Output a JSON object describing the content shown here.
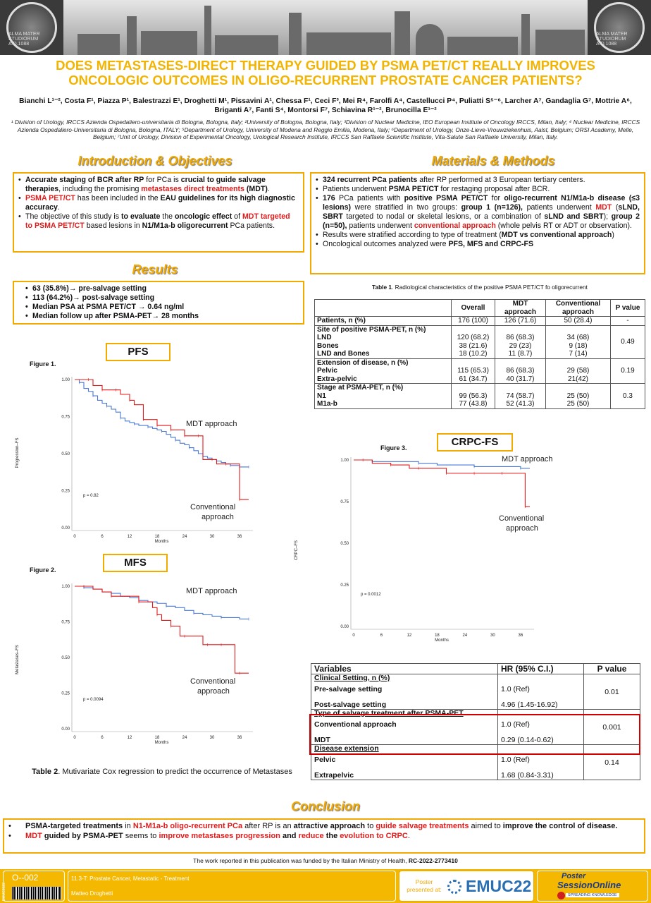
{
  "header": {
    "seal_text": "ALMA MATER STUDIORUM A.D.1088"
  },
  "title": "DOES METASTASES-DIRECT THERAPY GUIDED BY PSMA PET/CT REALLY IMPROVES ONCOLOGIC OUTCOMES IN OLIGO-RECURRENT PROSTATE CANCER PATIENTS?",
  "authors": "Bianchi L¹⁻², Costa F¹, Piazza P¹, Balestrazzi E¹, Droghetti M¹, Pissavini A¹, Chessa F¹, Ceci F³, Mei R⁴, Farolfi A⁴, Castellucci P⁴, Puliatti S⁵⁻⁶, Larcher A⁷, Gandaglia G⁷, Mottrie A⁶, Briganti A⁷, Fanti S⁴, Montorsi F⁷, Schiavina R¹⁻², Brunocilla E¹⁻²",
  "affiliations": "¹ Division of Urology, IRCCS Azienda Ospedaliero-universitaria di Bologna, Bologna, Italy; ²University of Bologna, Bologna, Italy; ³Division of Nuclear Medicine, IEO European Institute of Oncology IRCCS, Milan, Italy; ⁴ Nuclear Medicine, IRCCS Azienda Ospedaliero-Universitaria di Bologna, Bologna, ITALY; ⁵Department of Urology, University of Modena and Reggio Emilia, Modena, Italy; ⁶Department of Urology, Onze-Lieve-Vrouwziekenhuis, Aalst, Belgium; ORSI Academy, Melle, Belgium; ⁷Unit of Urology, Division of Experimental Oncology, Urological Research Institute, IRCCS San Raffaele Scientific Institute, Vita-Salute San Raffaele University, Milan, Italy.",
  "intro": {
    "heading": "Introduction & Objectives",
    "b1": {
      "a": "Accurate staging of BCR after RP",
      "b": " for PCa is ",
      "c": "crucial to guide salvage therapies",
      "d": ", including the promising ",
      "e": "metastases direct treatments",
      "f": " (MDT)",
      "g": "."
    },
    "b2": {
      "a": "PSMA PET/CT",
      "b": " has been included in the ",
      "c": "EAU guidelines for its high diagnostic accuracy",
      "d": "."
    },
    "b3": {
      "a": "The objective of this study is ",
      "b": "to evaluate",
      "c": " the ",
      "d": "oncologic effect",
      "e": " of ",
      "f": "MDT targeted to PSMA PET/CT",
      "g": " based lesions in ",
      "h": "N1/M1a-b oligorecurrent",
      "i": " PCa patients."
    }
  },
  "methods": {
    "heading": "Materials & Methods",
    "b1": {
      "a": "324 recurrent PCa patients",
      "b": " after RP performed at 3 European tertiary centers."
    },
    "b2": {
      "a": "Patients underwent ",
      "b": "PSMA PET/CT",
      "c": " for restaging proposal after BCR."
    },
    "b3": {
      "a": "176",
      "b": " PCa patients with ",
      "c": "positive PSMA PET/CT",
      "d": " for ",
      "e": "oligo-recurrent N1/M1a-b disease (≤3 lesions)",
      "f": " were stratified in two groups: ",
      "g": "group 1 (n=126),",
      "h": " patients underwent ",
      "i": "MDT",
      "j": " (",
      "k": "sLND, SBRT",
      "l": " targeted to nodal or skeletal lesions, or a combination of ",
      "m": "sLND and SBRT",
      "n": "); ",
      "o": "group 2 (n=50),",
      "p": " patients underwent ",
      "q": "conventional approach",
      "r": " (whole pelvis RT or ADT or observation)."
    },
    "b4": {
      "a": "Results were stratified according to type of treatment (",
      "b": "MDT vs conventional approach",
      "c": ")"
    },
    "b5": {
      "a": "Oncological outcomes analyzed were ",
      "b": "PFS, MFS and CRPC-FS"
    }
  },
  "results": {
    "heading": "Results",
    "items": [
      "63 (35.8%)→ pre-salvage setting",
      "113 (64.2%)→ post-salvage setting",
      "Median PSA at PSMA PET/CT → 0.64 ng/ml",
      "Median follow up after PSMA-PET→ 28 months"
    ]
  },
  "table1": {
    "caption_bold": "Table 1",
    "caption": ". Radiological characteristics of the positive PSMA PET/CT fo oligorecurrent",
    "headers": [
      "",
      "Overall",
      "MDT approach",
      "Conventional approach",
      "P value"
    ],
    "rows": [
      {
        "labels": [
          "Patients, n (%)"
        ],
        "overall": [
          "176 (100)"
        ],
        "mdt": [
          "126 (71.6)"
        ],
        "conv": [
          "50 (28.4)"
        ],
        "p": "-"
      },
      {
        "labels": [
          "Site of positive PSMA-PET, n (%)",
          "LND",
          "Bones",
          "LND and Bones"
        ],
        "overall": [
          "",
          "120 (68.2)",
          "38 (21.6)",
          "18 (10.2)"
        ],
        "mdt": [
          "",
          "86 (68.3)",
          "29 (23)",
          "11 (8.7)"
        ],
        "conv": [
          "",
          "34 (68)",
          "9 (18)",
          "7 (14)"
        ],
        "p": "0.49"
      },
      {
        "labels": [
          "Extension of disease, n (%)",
          "Pelvic",
          "Extra-pelvic"
        ],
        "overall": [
          "",
          "115 (65.3)",
          "61 (34.7)"
        ],
        "mdt": [
          "",
          "86 (68.3)",
          "40 (31.7)"
        ],
        "conv": [
          "",
          "29 (58)",
          "21(42)"
        ],
        "p": "0.19"
      },
      {
        "labels": [
          "Stage at PSMA-PET, n (%)",
          "N1",
          "M1a-b"
        ],
        "overall": [
          "",
          "99 (56.3)",
          "77 (43.8)"
        ],
        "mdt": [
          "",
          "74 (58.7)",
          "52 (41.3)"
        ],
        "conv": [
          "",
          "25 (50)",
          "25 (50)"
        ],
        "p": "0.3"
      }
    ]
  },
  "chart_data": [
    {
      "type": "line",
      "panel_label": "PFS",
      "figure_label": "Figure 1.",
      "ylabel": "Progression–FS",
      "xlabel": "Months",
      "x_ticks": [
        0,
        6,
        12,
        18,
        24,
        30,
        36
      ],
      "y_ticks": [
        "0.00",
        "0.25",
        "0.50",
        "0.75",
        "1.00"
      ],
      "xlim": [
        0,
        38
      ],
      "ylim": [
        0,
        1
      ],
      "annotation": "p = 0.82",
      "label_mdt": "MDT approach",
      "label_conv": "Conventional approach",
      "series": [
        {
          "color": "#4a78d4",
          "x": [
            0,
            1,
            2,
            3,
            4,
            5,
            6,
            7,
            8,
            9,
            10,
            11,
            12,
            13,
            14,
            15,
            16,
            17,
            18,
            19,
            20,
            21,
            22,
            23,
            24,
            25,
            26,
            27,
            28,
            29,
            30,
            31,
            32,
            33,
            34,
            35,
            36,
            38
          ],
          "y": [
            1.0,
            0.98,
            0.94,
            0.92,
            0.89,
            0.86,
            0.84,
            0.82,
            0.8,
            0.78,
            0.74,
            0.72,
            0.71,
            0.7,
            0.69,
            0.69,
            0.68,
            0.67,
            0.66,
            0.65,
            0.63,
            0.61,
            0.59,
            0.57,
            0.56,
            0.54,
            0.52,
            0.5,
            0.48,
            0.47,
            0.46,
            0.45,
            0.44,
            0.43,
            0.42,
            0.42,
            0.41,
            0.41
          ]
        },
        {
          "color": "#e01b1b",
          "x": [
            0,
            3,
            4,
            5,
            6,
            7,
            8,
            9,
            10,
            11,
            12,
            13,
            14,
            15,
            16,
            17,
            18,
            19,
            20,
            21,
            22,
            23,
            24,
            25,
            26,
            27,
            28,
            29,
            30,
            31,
            32,
            33,
            34,
            35,
            36,
            38
          ],
          "y": [
            1.0,
            1.0,
            0.96,
            0.96,
            0.93,
            0.93,
            0.93,
            0.93,
            0.9,
            0.9,
            0.86,
            0.83,
            0.83,
            0.73,
            0.73,
            0.73,
            0.69,
            0.69,
            0.69,
            0.66,
            0.66,
            0.66,
            0.62,
            0.62,
            0.62,
            0.62,
            0.46,
            0.46,
            0.46,
            0.43,
            0.43,
            0.43,
            0.43,
            0.43,
            0.19,
            0.19
          ]
        }
      ]
    },
    {
      "type": "line",
      "panel_label": "MFS",
      "figure_label": "Figure 2.",
      "ylabel": "Metastases–FS",
      "xlabel": "Months",
      "x_ticks": [
        0,
        6,
        12,
        18,
        24,
        30,
        36
      ],
      "y_ticks": [
        "0.00",
        "0.25",
        "0.50",
        "0.75",
        "1.00"
      ],
      "xlim": [
        0,
        38
      ],
      "ylim": [
        0,
        1
      ],
      "annotation": "p = 0.0094",
      "label_mdt": "MDT approach",
      "label_conv": "Conventional approach",
      "series": [
        {
          "color": "#4a78d4",
          "x": [
            0,
            2,
            4,
            6,
            8,
            10,
            12,
            14,
            16,
            18,
            20,
            22,
            24,
            26,
            28,
            30,
            32,
            34,
            36,
            38
          ],
          "y": [
            1.0,
            0.99,
            0.98,
            0.96,
            0.95,
            0.93,
            0.92,
            0.9,
            0.89,
            0.88,
            0.86,
            0.85,
            0.83,
            0.81,
            0.8,
            0.79,
            0.78,
            0.78,
            0.77,
            0.77
          ]
        },
        {
          "color": "#e01b1b",
          "x": [
            0,
            2,
            4,
            6,
            8,
            10,
            12,
            14,
            16,
            17,
            18,
            19,
            20,
            21,
            22,
            23,
            24,
            27,
            28,
            29,
            30,
            31,
            32,
            34,
            35,
            36,
            38
          ],
          "y": [
            1.0,
            1.0,
            0.98,
            0.96,
            0.93,
            0.93,
            0.93,
            0.89,
            0.89,
            0.85,
            0.8,
            0.76,
            0.76,
            0.72,
            0.72,
            0.65,
            0.65,
            0.65,
            0.59,
            0.59,
            0.59,
            0.59,
            0.59,
            0.59,
            0.39,
            0.39,
            0.39
          ]
        }
      ]
    },
    {
      "type": "line",
      "panel_label": "CRPC-FS",
      "figure_label": "Figure 3.",
      "ylabel": "CRPC–FS",
      "xlabel": "Months",
      "x_ticks": [
        0,
        6,
        12,
        18,
        24,
        30,
        36
      ],
      "y_ticks": [
        "0.00",
        "0.25",
        "0.50",
        "0.75",
        "1.00"
      ],
      "xlim": [
        0,
        38
      ],
      "ylim": [
        0,
        1
      ],
      "annotation": "p = 0.0012",
      "label_mdt": "MDT approach",
      "label_conv": "Conventional approach",
      "series": [
        {
          "color": "#4a78d4",
          "x": [
            0,
            4,
            6,
            10,
            14,
            18,
            22,
            26,
            30,
            34,
            36,
            38
          ],
          "y": [
            1.0,
            0.99,
            0.99,
            0.99,
            0.98,
            0.97,
            0.97,
            0.96,
            0.96,
            0.96,
            0.95,
            0.95
          ]
        },
        {
          "color": "#e01b1b",
          "x": [
            0,
            2,
            4,
            6,
            8,
            10,
            12,
            14,
            16,
            18,
            20,
            22,
            24,
            26,
            28,
            30,
            32,
            34,
            36,
            37,
            38
          ],
          "y": [
            1.0,
            1.0,
            0.98,
            0.98,
            0.97,
            0.97,
            0.95,
            0.95,
            0.95,
            0.95,
            0.92,
            0.92,
            0.92,
            0.92,
            0.92,
            0.92,
            0.92,
            0.92,
            0.92,
            0.72,
            0.72
          ]
        }
      ]
    }
  ],
  "table2": {
    "caption_bold": "Table 2",
    "caption": ". Mutivariate Cox regression to predict the occurrence of Metastases",
    "headers": [
      "Variables",
      "HR (95% C.I.)",
      "P value"
    ],
    "groups": [
      {
        "title": "Clinical Setting, n (%)",
        "rows": [
          [
            "Pre-salvage setting",
            "1.0 (Ref)"
          ],
          [
            "Post-salvage setting",
            "4.96 (1.45-16.92)"
          ]
        ],
        "p": "0.01"
      },
      {
        "title": "Type of salvage treatment after PSMA-PET",
        "rows": [
          [
            "Conventional approach",
            "1.0 (Ref)"
          ],
          [
            "MDT",
            "0.29 (0.14-0.62)"
          ]
        ],
        "p": "0.001"
      },
      {
        "title": "Disease extension",
        "rows": [
          [
            "Pelvic",
            "1.0 (Ref)"
          ],
          [
            "Extrapelvic",
            "1.68 (0.84-3.31)"
          ]
        ],
        "p": "0.14"
      }
    ]
  },
  "conclusion": {
    "heading": "Conclusion",
    "b1": {
      "a": "PSMA-targeted treatments",
      "b": " in ",
      "c": "N1-M1a-b oligo-recurrent PCa",
      "d": " after RP is an ",
      "e": "attractive approach",
      "f": " to ",
      "g": "guide salvage treatments",
      "h": " aimed to ",
      "i": "improve the control of disease."
    },
    "b2": {
      "a": "MDT",
      "b": " guided by PSMA-PET",
      "c": " seems to ",
      "d": "improve metastases progression",
      "e": " and ",
      "f": "reduce",
      "g": " the ",
      "h": "evolution to CRPC",
      "i": "."
    }
  },
  "funding": {
    "a": "The work reported in this publication was funded by the Italian Ministry of Health, ",
    "b": "RC-2022-2773410"
  },
  "footer": {
    "code": "O--002",
    "track": "11.3-T: Prostate Cancer, Metastatic - Treatment",
    "presenter": "Matteo Droghetti",
    "side_text": "EMUC2022",
    "poster_label": "Poster presented at:",
    "emuc": "EMUC22",
    "pso_line1": "Poster",
    "pso_line2": "SessionOnline",
    "pso_tag": "SPREADING KNOWLEDGE"
  },
  "colors": {
    "accent": "#f2a900",
    "red": "#e01b1b",
    "blue": "#4a78d4"
  }
}
